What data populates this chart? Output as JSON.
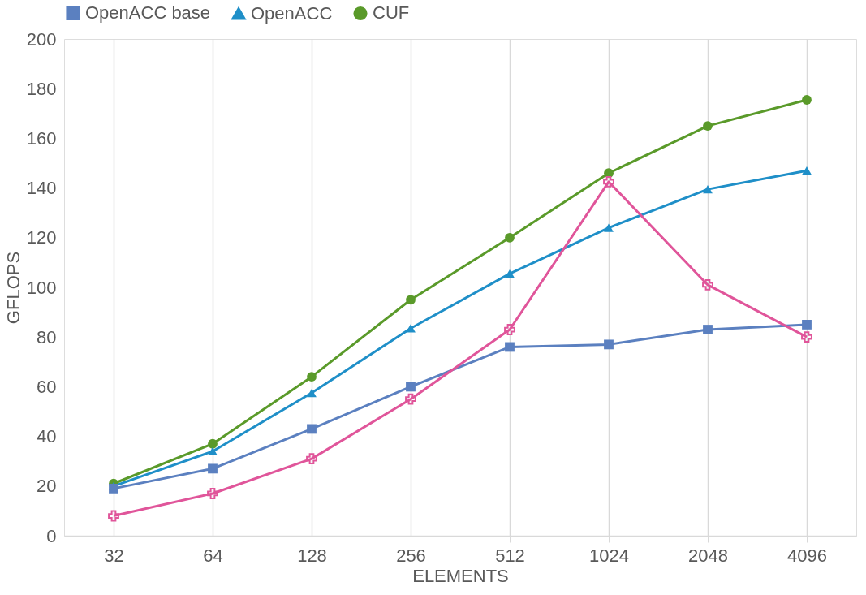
{
  "chart_data": {
    "type": "line",
    "xlabel": "ELEMENTS",
    "ylabel": "GFLOPS",
    "categories": [
      "32",
      "64",
      "128",
      "256",
      "512",
      "1024",
      "2048",
      "4096"
    ],
    "series": [
      {
        "name": "OpenACC base",
        "color": "#5b80c0",
        "marker": "square",
        "values": [
          19,
          27,
          43,
          60,
          76,
          77,
          83,
          85
        ]
      },
      {
        "name": "OpenACC",
        "color": "#1f8fc8",
        "marker": "triangle",
        "values": [
          20,
          34,
          57.5,
          83.5,
          105.5,
          124,
          139.5,
          147
        ]
      },
      {
        "color": "#e0559a",
        "marker": "cross",
        "values": [
          8,
          17,
          31,
          55,
          83,
          142.5,
          101,
          80
        ]
      },
      {
        "name": "CUF",
        "color": "#5a9a2a",
        "marker": "circle",
        "values": [
          21,
          37,
          64,
          95,
          120,
          146,
          165,
          175.5
        ]
      }
    ],
    "ylim": [
      0,
      200
    ],
    "yticks": [
      0,
      20,
      40,
      60,
      80,
      100,
      120,
      140,
      160,
      180,
      200
    ],
    "grid": "x",
    "legend": "top",
    "line_style": "solid"
  }
}
